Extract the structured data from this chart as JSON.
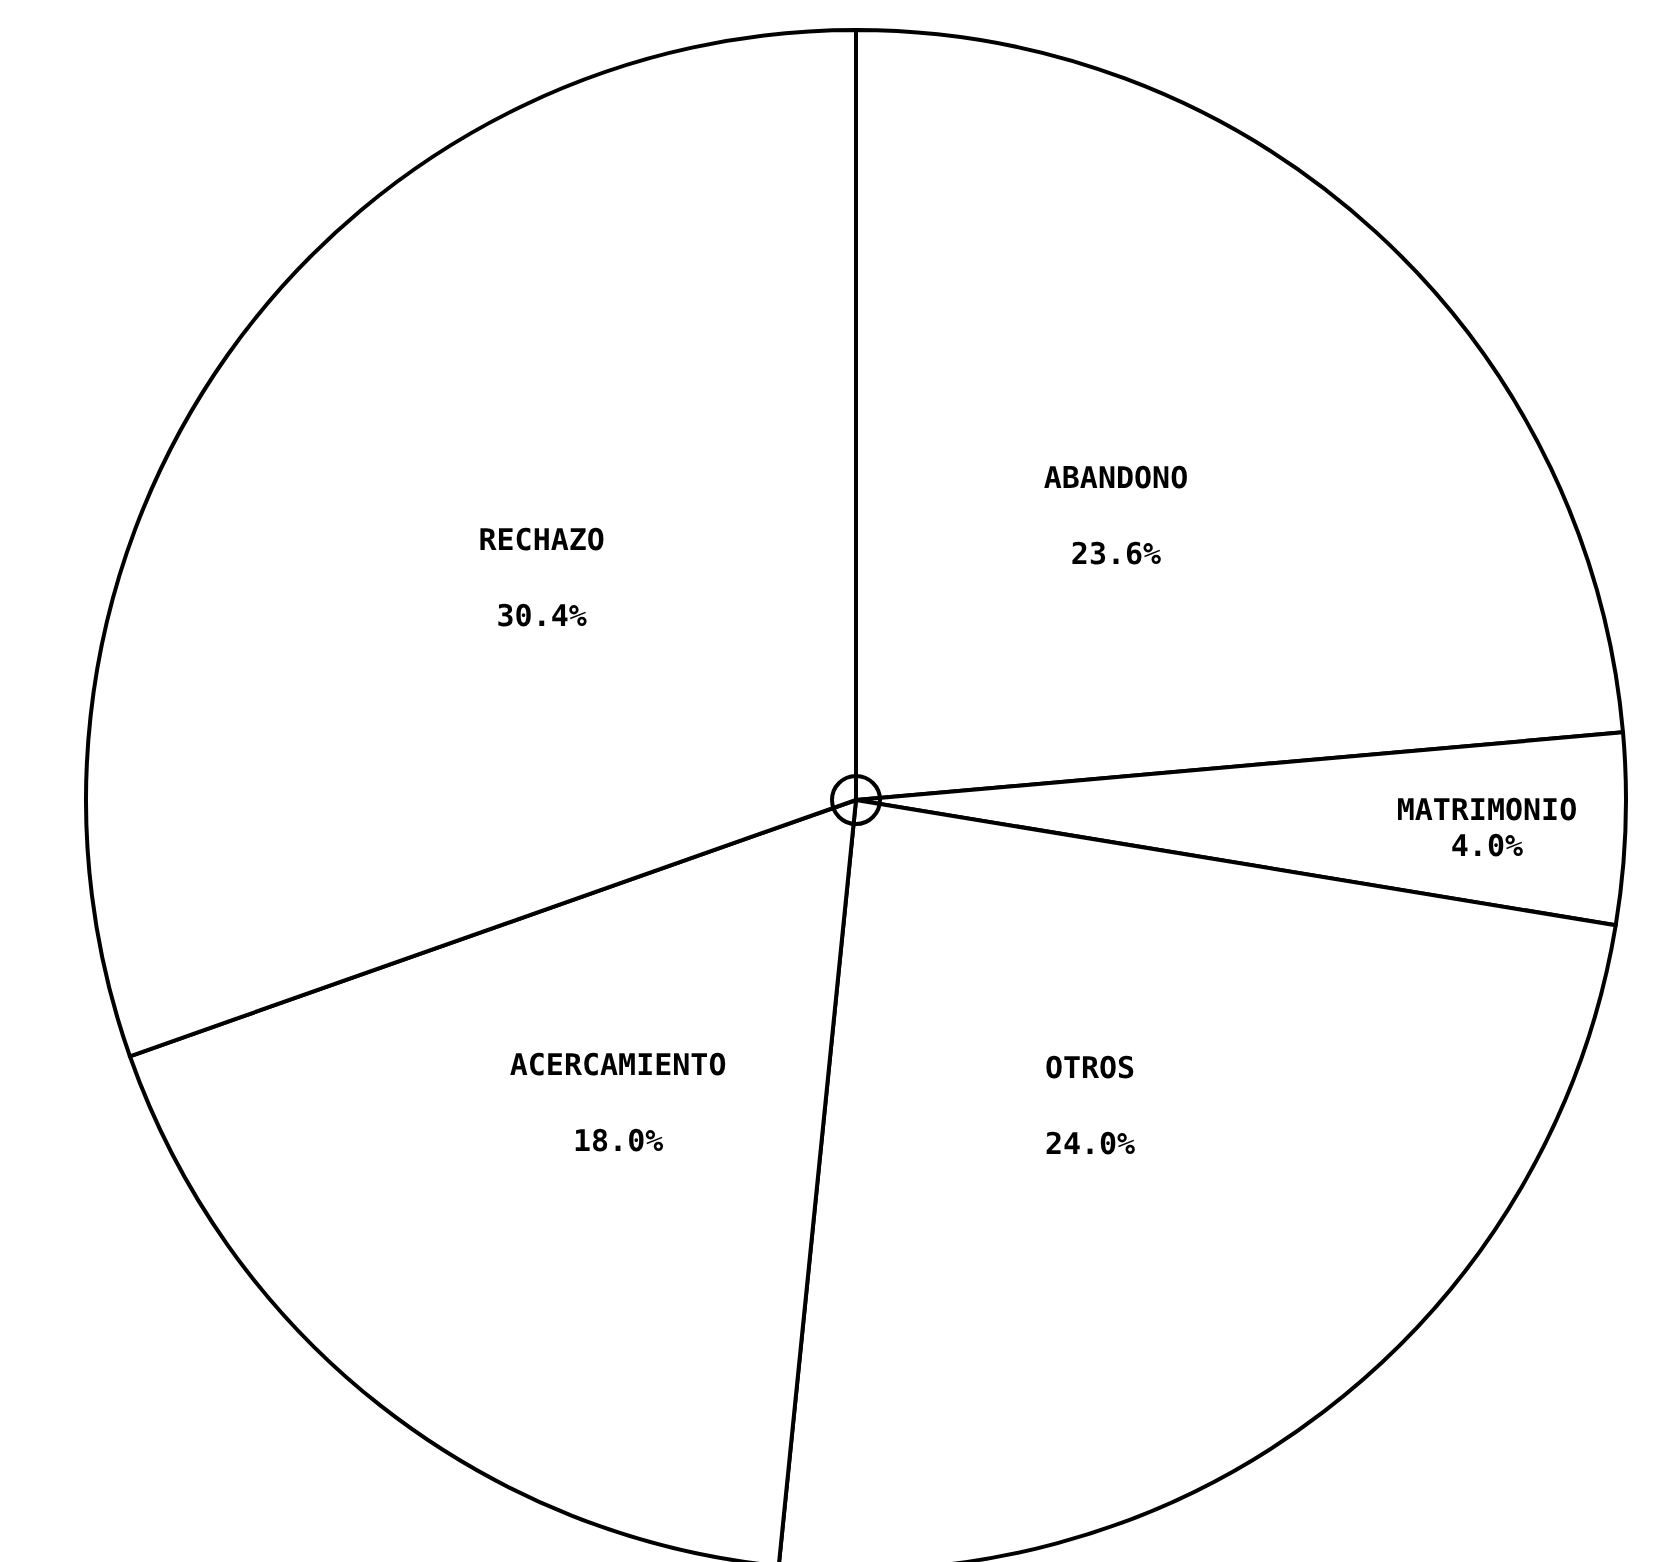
{
  "chart_data": {
    "type": "pie",
    "categories": [
      "ABANDONO",
      "MATRIMONIO",
      "OTROS",
      "ACERCAMIENTO",
      "RECHAZO"
    ],
    "values": [
      23.6,
      4.0,
      24.0,
      18.0,
      30.4
    ],
    "colors": [
      "#ffffff",
      "#ffffff",
      "#ffffff",
      "#ffffff",
      "#ffffff"
    ],
    "value_labels": [
      "23.6%",
      "4.0%",
      "24.0%",
      "18.0%",
      "30.4%"
    ]
  }
}
